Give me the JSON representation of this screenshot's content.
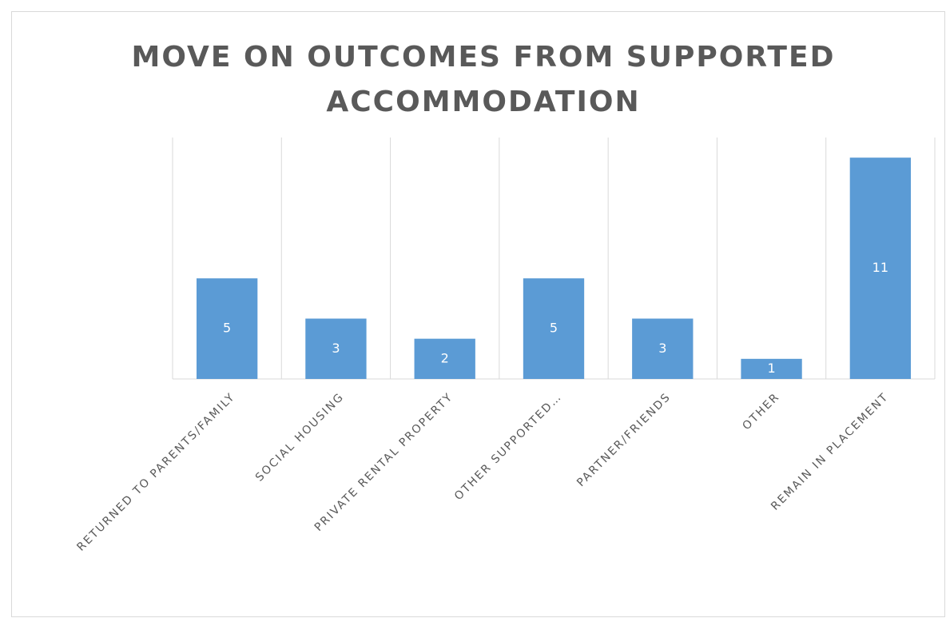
{
  "chart_data": {
    "type": "bar",
    "title": "MOVE ON OUTCOMES FROM SUPPORTED ACCOMMODATION",
    "categories": [
      "RETURNED TO PARENTS/FAMILY",
      "SOCIAL HOUSING",
      "PRIVATE RENTAL PROPERTY",
      "OTHER SUPPORTED…",
      "PARTNER/FRIENDS",
      "OTHER",
      "REMAIN IN PLACEMENT"
    ],
    "values": [
      5,
      3,
      2,
      5,
      3,
      1,
      11
    ],
    "color": "#5b9bd5",
    "ylim": [
      0,
      12
    ],
    "data_labels": true
  }
}
